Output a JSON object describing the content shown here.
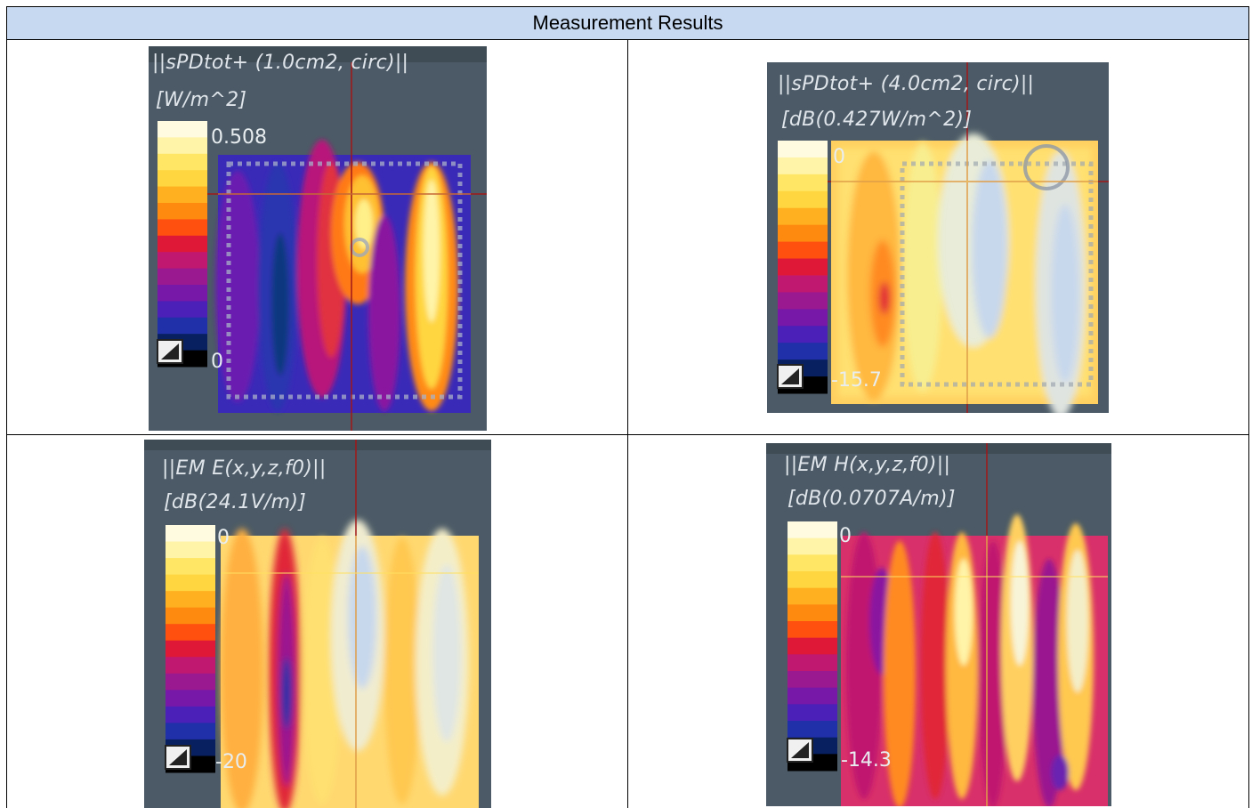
{
  "header": {
    "title": "Measurement Results"
  },
  "panels": [
    {
      "title": "||sPDtot+ (1.0cm2, circ)||",
      "unit": "[W/m^2]",
      "max": "0.508",
      "min": "0"
    },
    {
      "title": "||sPDtot+ (4.0cm2, circ)||",
      "unit": "[dB(0.427W/m^2)]",
      "max": "0",
      "min": "-15.7"
    },
    {
      "title": "||EM E(x,y,z,f0)||",
      "unit": "[dB(24.1V/m)]",
      "max": "0",
      "min": "-20"
    },
    {
      "title": "||EM H(x,y,z,f0)||",
      "unit": "[dB(0.0707A/m)]",
      "max": "0",
      "min": "-14.3"
    }
  ],
  "colors": {
    "scale": [
      "#fffbe0",
      "#fff4a8",
      "#ffe665",
      "#ffd640",
      "#ffb020",
      "#ff8a10",
      "#ff5010",
      "#e01838",
      "#c01870",
      "#9a1890",
      "#7818a8",
      "#4a20b8",
      "#2030a8",
      "#082060",
      "#000000"
    ]
  }
}
